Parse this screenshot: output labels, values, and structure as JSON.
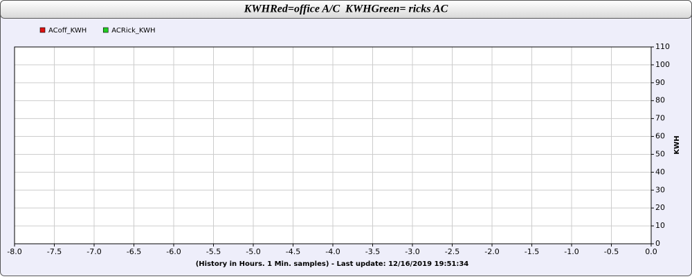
{
  "chart_data": {
    "type": "line",
    "title": "KWHRed=office A/C  KWHGreen= ricks AC",
    "x_label": "(History in Hours. 1 Min. samples) - Last update: 12/16/2019 19:51:34",
    "y_label": "KWH",
    "x": [],
    "series": [
      {
        "name": "ACoff_KWH",
        "color": "#dd1111",
        "values": []
      },
      {
        "name": "ACRick_KWH",
        "color": "#22cc22",
        "values": []
      }
    ],
    "xlim": [
      -8,
      0
    ],
    "xticks": [
      {
        "value": -8,
        "label": "-8.0"
      },
      -7.5,
      {
        "value": -7,
        "label": "-7.0"
      },
      -6.5,
      {
        "value": -6,
        "label": "-6.0"
      },
      -5.5,
      {
        "value": -5,
        "label": "-5.0"
      },
      -4.5,
      {
        "value": -4,
        "label": "-4.0"
      },
      -3.5,
      {
        "value": -3,
        "label": "-3.0"
      },
      -2.5,
      {
        "value": -2,
        "label": "-2.0"
      },
      -1.5,
      {
        "value": -1,
        "label": "-1.0"
      },
      -0.5,
      {
        "value": 0,
        "label": "0.0"
      }
    ],
    "ylim": [
      0,
      110
    ],
    "yticks": [
      0,
      10,
      20,
      30,
      40,
      50,
      60,
      70,
      80,
      90,
      100,
      110
    ],
    "y_axis_side": "right",
    "grid": true,
    "legend": "top-left"
  }
}
